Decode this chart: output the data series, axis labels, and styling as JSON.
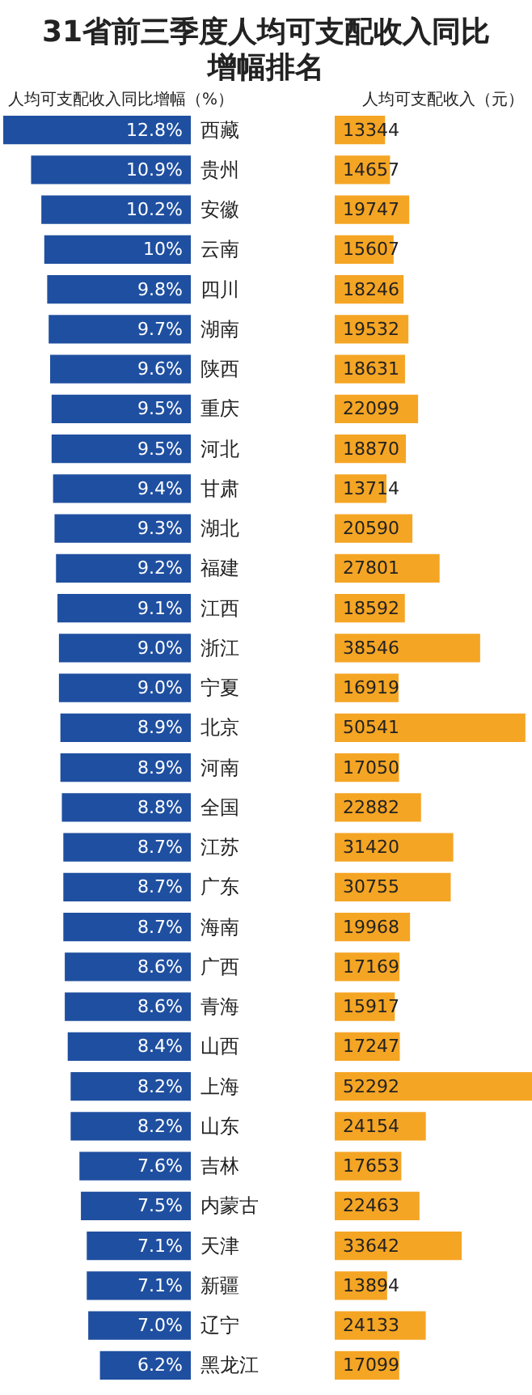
{
  "chart_data": [
    {
      "type": "bar",
      "orientation": "horizontal",
      "title": "31省前三季度人均可支配收入同比增幅排名",
      "xlabel": "人均可支配收入同比增幅（%）",
      "categories": [
        "西藏",
        "贵州",
        "安徽",
        "云南",
        "四川",
        "湖南",
        "陕西",
        "重庆",
        "河北",
        "甘肃",
        "湖北",
        "福建",
        "江西",
        "浙江",
        "宁夏",
        "北京",
        "河南",
        "全国",
        "江苏",
        "广东",
        "海南",
        "广西",
        "青海",
        "山西",
        "上海",
        "山东",
        "吉林",
        "内蒙古",
        "天津",
        "新疆",
        "辽宁",
        "黑龙江"
      ],
      "values": [
        12.8,
        10.9,
        10.2,
        10,
        9.8,
        9.7,
        9.6,
        9.5,
        9.5,
        9.4,
        9.3,
        9.2,
        9.1,
        9.0,
        9.0,
        8.9,
        8.9,
        8.8,
        8.7,
        8.7,
        8.7,
        8.6,
        8.6,
        8.4,
        8.2,
        8.2,
        7.6,
        7.5,
        7.1,
        7.1,
        7.0,
        6.2
      ],
      "value_labels": [
        "12.8%",
        "10.9%",
        "10.2%",
        "10%",
        "9.8%",
        "9.7%",
        "9.6%",
        "9.5%",
        "9.5%",
        "9.4%",
        "9.3%",
        "9.2%",
        "9.1%",
        "9.0%",
        "9.0%",
        "8.9%",
        "8.9%",
        "8.8%",
        "8.7%",
        "8.7%",
        "8.7%",
        "8.6%",
        "8.6%",
        "8.4%",
        "8.2%",
        "8.2%",
        "7.6%",
        "7.5%",
        "7.1%",
        "7.1%",
        "7.0%",
        "6.2%"
      ],
      "color": "#1f4fa0",
      "xlim": [
        12.8,
        0
      ],
      "tick_labels": "y"
    },
    {
      "type": "bar",
      "orientation": "horizontal",
      "xlabel": "人均可支配收入（元）",
      "categories": [
        null,
        null,
        null,
        null,
        null,
        null,
        null,
        null,
        null,
        null,
        null,
        null,
        null,
        null,
        null,
        null,
        null,
        null,
        null,
        null,
        null,
        null,
        null,
        null,
        null,
        null,
        null,
        null,
        null,
        null,
        null,
        null
      ],
      "values": [
        13344,
        14657,
        19747,
        15607,
        18246,
        19532,
        18631,
        22099,
        18870,
        13714,
        20590,
        27801,
        18592,
        38546,
        16919,
        50541,
        17050,
        22882,
        31420,
        30755,
        19968,
        17169,
        15917,
        17247,
        52292,
        24154,
        17653,
        22463,
        33642,
        13894,
        24133,
        17099
      ],
      "data_labels": true,
      "color": "#f5a524",
      "xlim": [
        0,
        52292
      ],
      "tick_labels": false
    }
  ]
}
